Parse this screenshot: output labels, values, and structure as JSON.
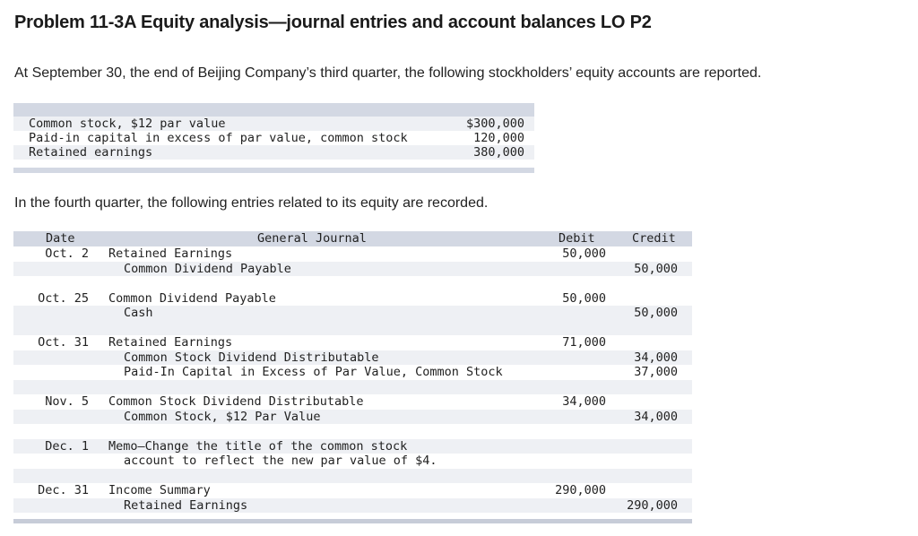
{
  "title": "Problem 11-3A Equity analysis—journal entries and account balances LO P2",
  "intro": "At September 30, the end of Beijing Company’s third quarter, the following stockholders’ equity accounts are reported.",
  "equity_accounts": [
    {
      "label": "Common stock, $12 par value",
      "amount": "$300,000"
    },
    {
      "label": "Paid-in capital in excess of par value, common stock",
      "amount": "120,000"
    },
    {
      "label": "Retained earnings",
      "amount": "380,000"
    }
  ],
  "fourth_quarter_text": "In the fourth quarter, the following entries related to its equity are recorded.",
  "journal": {
    "headers": {
      "date": "Date",
      "journal": "General Journal",
      "debit": "Debit",
      "credit": "Credit"
    },
    "lines": [
      {
        "date": "Oct. 2",
        "account": "Retained Earnings",
        "debit": "50,000",
        "credit": ""
      },
      {
        "date": "",
        "account": "Common Dividend Payable",
        "debit": "",
        "credit": "50,000"
      },
      {
        "date": "Oct. 25",
        "account": "Common Dividend Payable",
        "debit": "50,000",
        "credit": ""
      },
      {
        "date": "",
        "account": "Cash",
        "debit": "",
        "credit": "50,000"
      },
      {
        "date": "Oct. 31",
        "account": "Retained Earnings",
        "debit": "71,000",
        "credit": ""
      },
      {
        "date": "",
        "account": "Common Stock Dividend Distributable",
        "debit": "",
        "credit": "34,000"
      },
      {
        "date": "",
        "account": "Paid-In Capital in Excess of Par Value, Common Stock",
        "debit": "",
        "credit": "37,000"
      },
      {
        "date": "Nov. 5",
        "account": "Common Stock Dividend Distributable",
        "debit": "34,000",
        "credit": ""
      },
      {
        "date": "",
        "account": "Common Stock, $12 Par Value",
        "debit": "",
        "credit": "34,000"
      },
      {
        "date": "Dec. 1",
        "account": "Memo—Change the title of the common stock",
        "debit": "",
        "credit": ""
      },
      {
        "date": "",
        "account": "account to reflect the new par value of $4.",
        "debit": "",
        "credit": ""
      },
      {
        "date": "Dec. 31",
        "account": "Income Summary",
        "debit": "290,000",
        "credit": ""
      },
      {
        "date": "",
        "account": "Retained Earnings",
        "debit": "",
        "credit": "290,000"
      }
    ]
  }
}
